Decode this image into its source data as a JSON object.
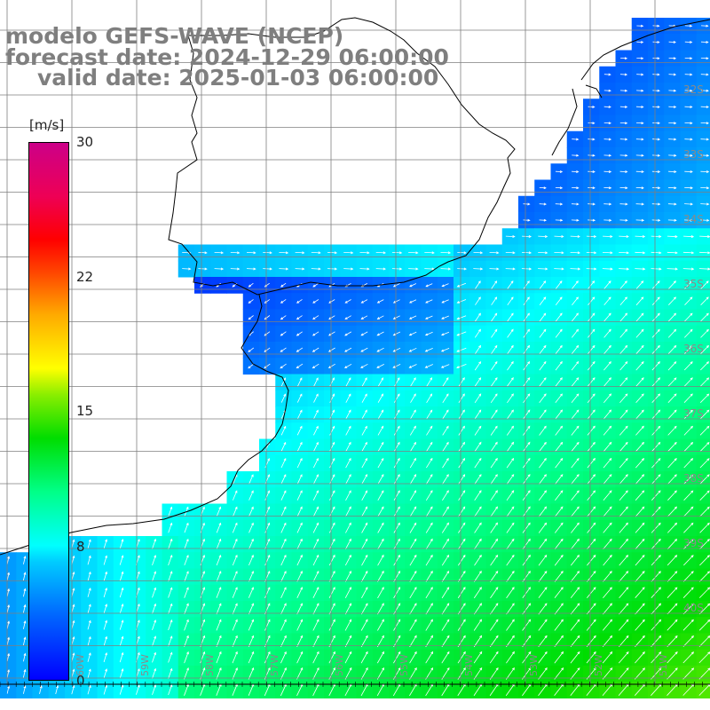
{
  "header": {
    "line1": "modelo GEFS-WAVE (NCEP)",
    "line2": "forecast date: 2024-12-29 06:00:00",
    "line3": "valid date: 2025-01-03 06:00:00"
  },
  "legend": {
    "unit": "[m/s]",
    "min": 0,
    "max": 30,
    "ticks": [
      "30",
      "22",
      "15",
      "8",
      "0"
    ]
  },
  "lat_labels": [
    "32S",
    "33S",
    "34S",
    "35S",
    "36S",
    "37S",
    "38S",
    "39S",
    "40S"
  ],
  "lon_labels": [
    "60W",
    "59W",
    "58W",
    "57W",
    "56W",
    "55W",
    "54W",
    "53W",
    "52W",
    "51W"
  ],
  "colors": {
    "ocean_low": "#0000ff",
    "ocean_mid": "#00ffff",
    "ocean_high": "#00dd00",
    "land": "#ffffff",
    "grid": "#7f7f7f",
    "arrow": "#ffffff",
    "coast": "#000000"
  }
}
